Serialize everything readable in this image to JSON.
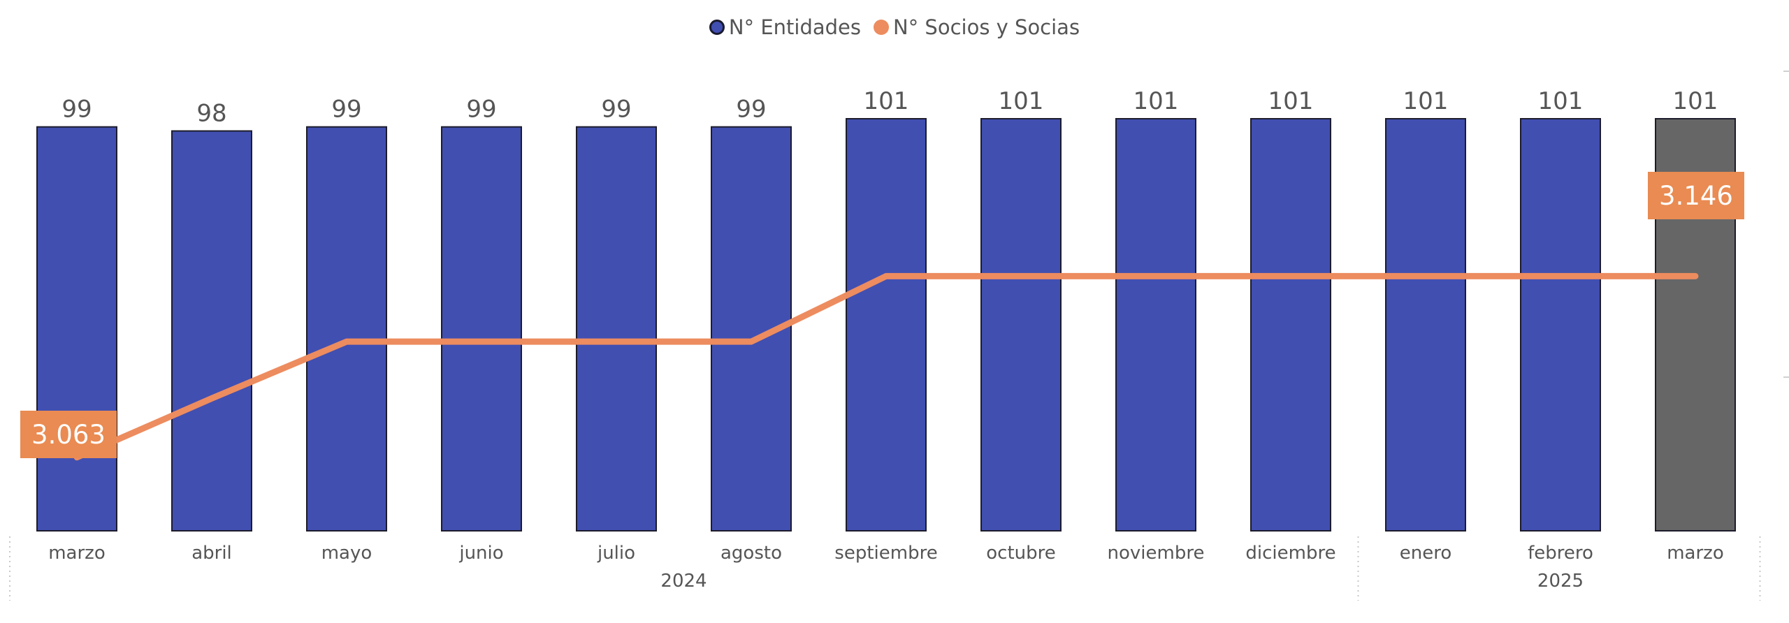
{
  "legend": {
    "entities_label": "N° Entidades",
    "members_label": "N° Socios y Socias"
  },
  "colors": {
    "bar": "#414fb1",
    "bar_highlight": "#666666",
    "line": "#ed8c5f",
    "label_box": "#e98b52",
    "text": "#555555"
  },
  "chart_data": {
    "type": "bar",
    "categories": [
      "marzo",
      "abril",
      "mayo",
      "junio",
      "julio",
      "agosto",
      "septiembre",
      "octubre",
      "noviembre",
      "diciembre",
      "enero",
      "febrero",
      "marzo"
    ],
    "year_groups": [
      {
        "label": "2024",
        "start": 0,
        "end": 9
      },
      {
        "label": "2025",
        "start": 10,
        "end": 12
      }
    ],
    "series": [
      {
        "name": "N° Entidades",
        "kind": "bar",
        "values": [
          99,
          98,
          99,
          99,
          99,
          99,
          101,
          101,
          101,
          101,
          101,
          101,
          101
        ],
        "value_labels": [
          "99",
          "98",
          "99",
          "99",
          "99",
          "99",
          "101",
          "101",
          "101",
          "101",
          "101",
          "101",
          "101"
        ]
      },
      {
        "name": "N° Socios y Socias",
        "kind": "line",
        "values": [
          3063,
          3090,
          3116,
          3116,
          3116,
          3116,
          3146,
          3146,
          3146,
          3146,
          3146,
          3146,
          3146
        ],
        "end_labels": {
          "first": "3.063",
          "last": "3.146"
        }
      }
    ],
    "highlight_index": 12,
    "bar_ylim": [
      0,
      101
    ],
    "line_ylim": [
      3053,
      3165
    ]
  }
}
